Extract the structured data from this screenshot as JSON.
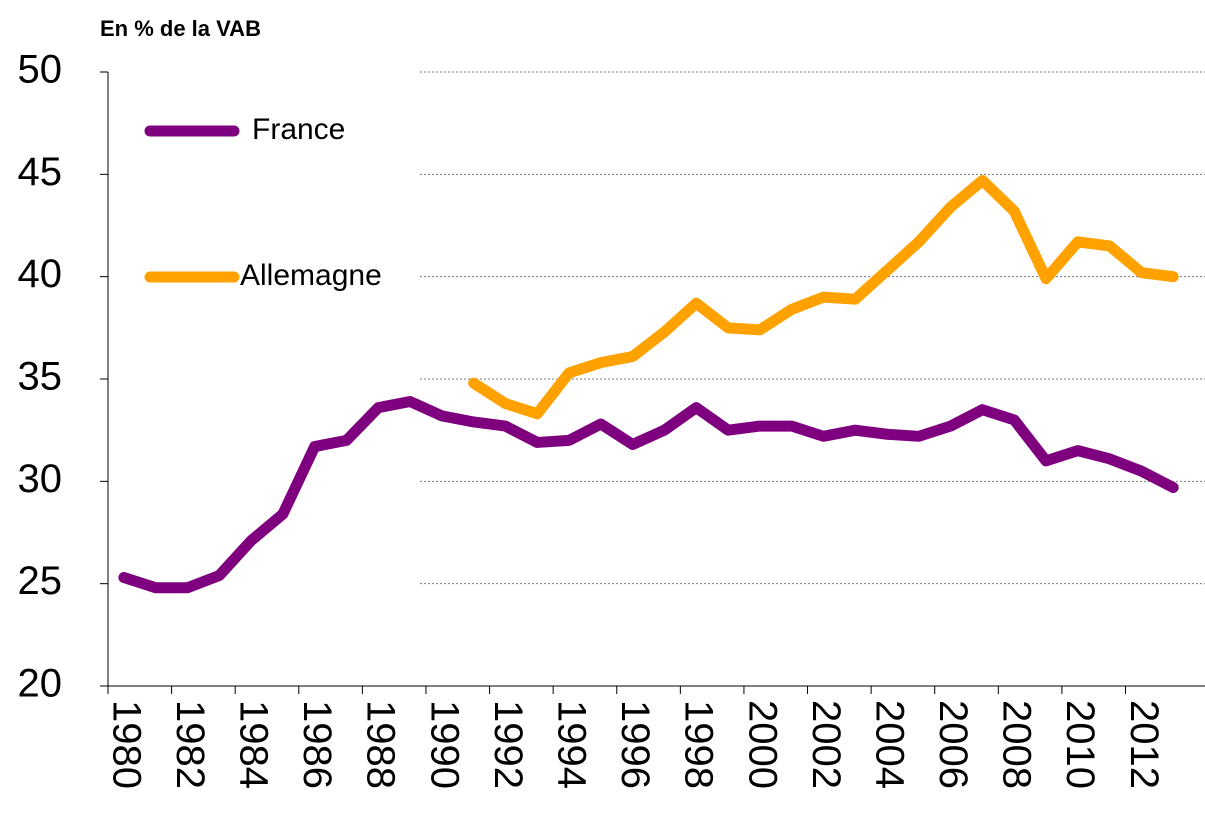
{
  "chart_data": {
    "type": "line",
    "title": "En % de la VAB",
    "categories": [
      "1980",
      null,
      "1982",
      null,
      "1984",
      null,
      "1986",
      null,
      "1988",
      null,
      "1990",
      null,
      "1992",
      null,
      "1994",
      null,
      "1996",
      null,
      "1998",
      null,
      "2000",
      null,
      "2002",
      null,
      "2004",
      null,
      "2006",
      null,
      "2008",
      null,
      "2010",
      null,
      "2012",
      null
    ],
    "series": [
      {
        "name": "France",
        "color": "#7f007f",
        "values": [
          25.3,
          24.8,
          24.8,
          25.4,
          27.1,
          28.4,
          31.7,
          32.0,
          33.6,
          33.9,
          33.2,
          32.9,
          32.7,
          31.9,
          32.0,
          32.8,
          31.8,
          32.5,
          33.6,
          32.5,
          32.7,
          32.7,
          32.2,
          32.5,
          32.3,
          32.2,
          32.7,
          33.5,
          33.0,
          31.0,
          31.5,
          31.1,
          30.5,
          29.7
        ]
      },
      {
        "name": "Allemagne",
        "color": "#ffa200",
        "values": [
          null,
          null,
          null,
          null,
          null,
          null,
          null,
          null,
          null,
          null,
          null,
          34.8,
          33.8,
          33.3,
          35.3,
          35.8,
          36.1,
          37.3,
          38.7,
          37.5,
          37.4,
          38.4,
          39.0,
          38.9,
          40.3,
          41.7,
          43.4,
          44.7,
          43.2,
          39.9,
          41.7,
          41.5,
          40.2,
          40.0
        ]
      }
    ],
    "ylim": [
      20,
      50
    ],
    "yticks": [
      20,
      25,
      30,
      35,
      40,
      45,
      50
    ],
    "grid": true,
    "legend": "top-left"
  }
}
